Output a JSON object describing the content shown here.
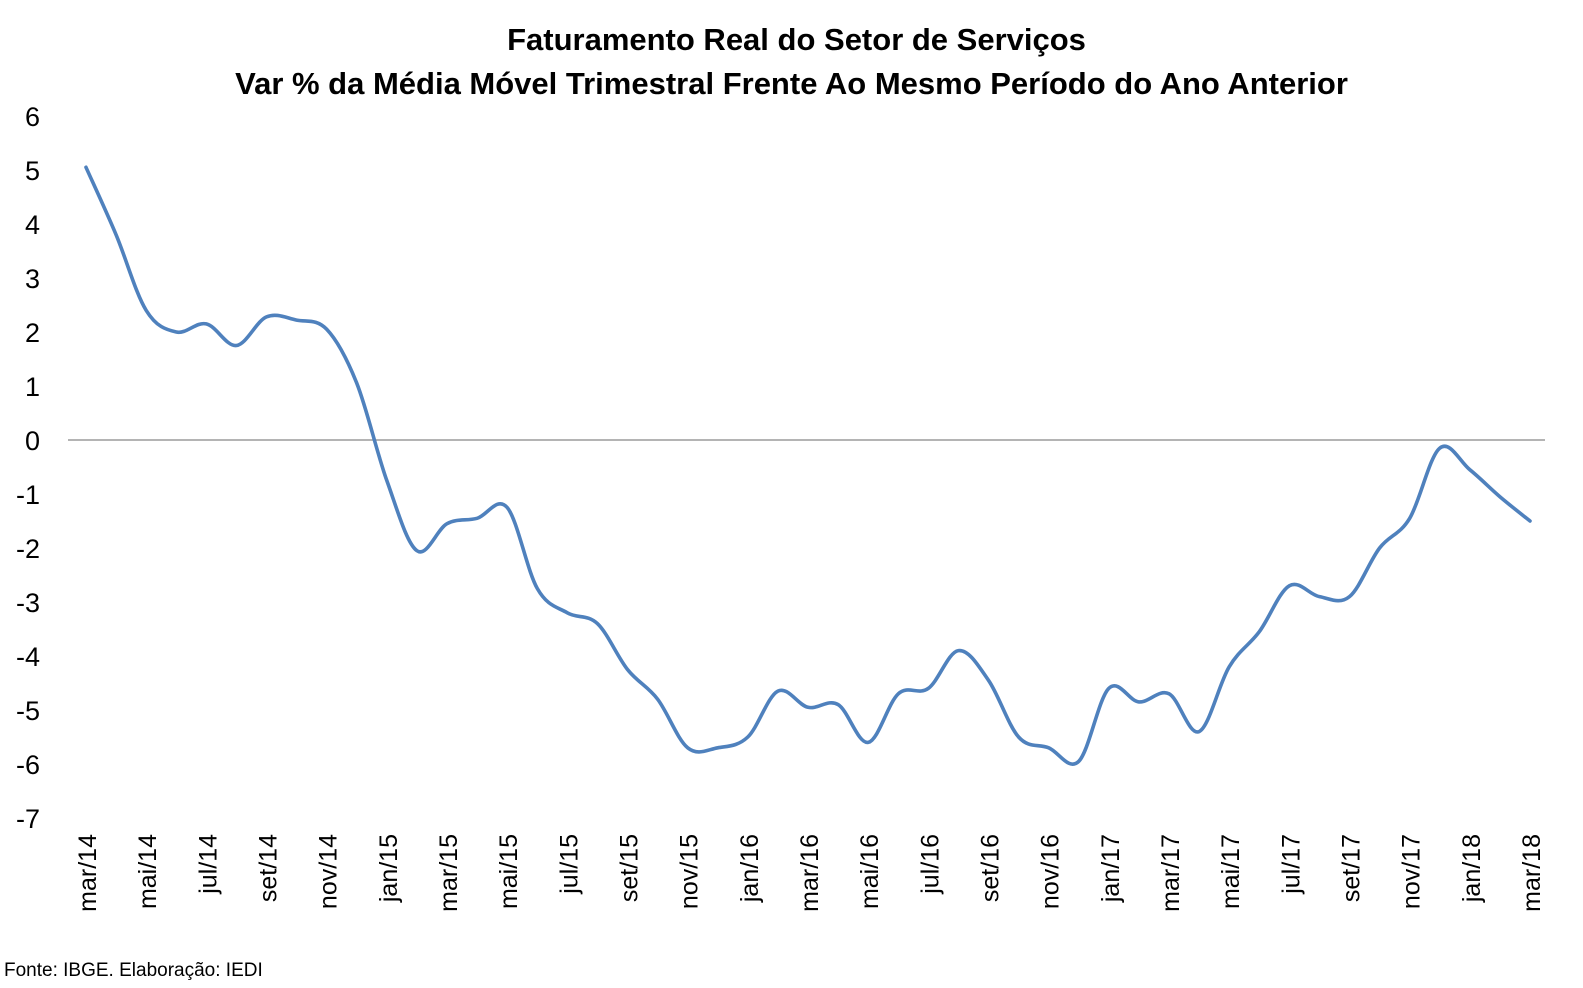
{
  "chart_data": {
    "type": "line",
    "title": "Faturamento Real do Setor de Serviços",
    "subtitle": "Var % da Média Móvel Trimestral Frente Ao Mesmo Período do Ano Anterior",
    "xlabel": "",
    "ylabel": "",
    "ylim": [
      -7,
      6
    ],
    "yticks": [
      "6",
      "5",
      "4",
      "3",
      "2",
      "1",
      "0",
      "-1",
      "-2",
      "-3",
      "-4",
      "-5",
      "-6",
      "-7"
    ],
    "grid": false,
    "legend": "none",
    "x_tick_labels": [
      "mar/14",
      "mai/14",
      "jul/14",
      "set/14",
      "nov/14",
      "jan/15",
      "mar/15",
      "mai/15",
      "jul/15",
      "set/15",
      "nov/15",
      "jan/16",
      "mar/16",
      "mai/16",
      "jul/16",
      "set/16",
      "nov/16",
      "jan/17",
      "mar/17",
      "mai/17",
      "jul/17",
      "set/17",
      "nov/17",
      "jan/18",
      "mar/18"
    ],
    "categories": [
      "mar/14",
      "abr/14",
      "mai/14",
      "jun/14",
      "jul/14",
      "ago/14",
      "set/14",
      "out/14",
      "nov/14",
      "dez/14",
      "jan/15",
      "fev/15",
      "mar/15",
      "abr/15",
      "mai/15",
      "jun/15",
      "jul/15",
      "ago/15",
      "set/15",
      "out/15",
      "nov/15",
      "dez/15",
      "jan/16",
      "fev/16",
      "mar/16",
      "abr/16",
      "mai/16",
      "jun/16",
      "jul/16",
      "ago/16",
      "set/16",
      "out/16",
      "nov/16",
      "dez/16",
      "jan/17",
      "fev/17",
      "mar/17",
      "abr/17",
      "mai/17",
      "jun/17",
      "jul/17",
      "ago/17",
      "set/17",
      "out/17",
      "nov/17",
      "dez/17",
      "jan/18",
      "fev/18",
      "mar/18"
    ],
    "series": [
      {
        "name": "",
        "color": "#4F81BD",
        "values": [
          5.05,
          3.8,
          2.4,
          2.0,
          2.15,
          1.75,
          2.28,
          2.22,
          2.05,
          1.05,
          -0.75,
          -2.05,
          -1.55,
          -1.45,
          -1.25,
          -2.75,
          -3.2,
          -3.4,
          -4.25,
          -4.8,
          -5.7,
          -5.7,
          -5.5,
          -4.65,
          -4.95,
          -4.9,
          -5.6,
          -4.7,
          -4.6,
          -3.9,
          -4.45,
          -5.5,
          -5.7,
          -5.95,
          -4.6,
          -4.85,
          -4.7,
          -5.4,
          -4.2,
          -3.55,
          -2.7,
          -2.9,
          -2.9,
          -2.0,
          -1.45,
          -0.15,
          -0.55,
          -1.05,
          -1.5
        ]
      }
    ]
  },
  "source_note": "Fonte: IBGE. Elaboração: IEDI"
}
